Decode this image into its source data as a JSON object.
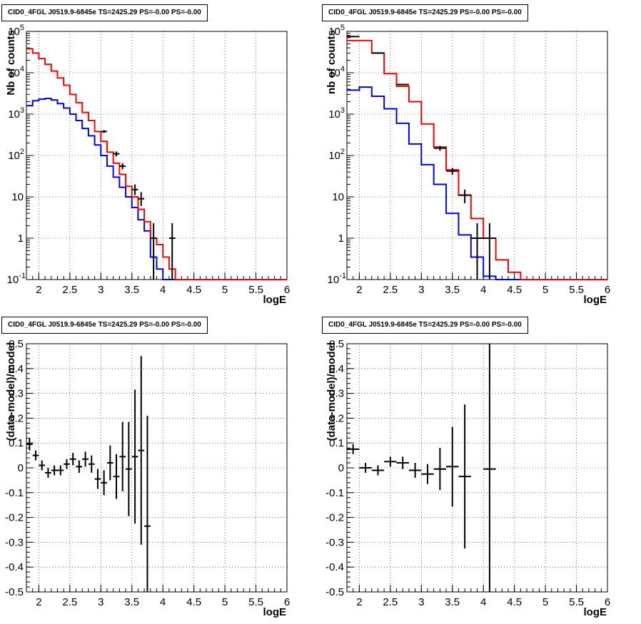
{
  "chart_data": [
    {
      "type": "histogram",
      "title": "CID0_4FGL J0519.9-6845e TS=2425.29 PS=-0.00 PS=-0.00",
      "xlabel": "logE",
      "ylabel": "Nb of counts",
      "log_y": true,
      "xlim": [
        1.8,
        6.0
      ],
      "ylim": [
        0.1,
        100000
      ],
      "grid": true,
      "x_ticks": [
        "2",
        "2.5",
        "3",
        "3.5",
        "4",
        "4.5",
        "5",
        "5.5",
        "6"
      ],
      "y_ticks": [
        "10^-1",
        "1",
        "10",
        "10^2",
        "10^3",
        "10^4",
        "10^5"
      ],
      "bin_edges": [
        1.8,
        1.9,
        2.0,
        2.1,
        2.2,
        2.3,
        2.4,
        2.5,
        2.6,
        2.7,
        2.8,
        2.9,
        3.0,
        3.1,
        3.2,
        3.3,
        3.4,
        3.5,
        3.6,
        3.7,
        3.8,
        3.9,
        4.0,
        4.1,
        4.2,
        4.3,
        4.4,
        4.5,
        4.6,
        4.7,
        4.8,
        4.9,
        5.0,
        5.1,
        5.2,
        5.3,
        5.4,
        5.5,
        5.6,
        5.7,
        5.8,
        5.9,
        6.0
      ],
      "series": [
        {
          "color": "#0000ff",
          "values": [
            1600,
            2100,
            2300,
            2400,
            2200,
            1800,
            1400,
            1000,
            700,
            450,
            300,
            180,
            100,
            55,
            30,
            17,
            10,
            5.5,
            2.8,
            1.5,
            0.35,
            0.18,
            0.1,
            0.1,
            0.1,
            0.1,
            0.1,
            0.1,
            0.1,
            0.1,
            0.1,
            0.1,
            0.1,
            0.1,
            0.1,
            0.1,
            0.1,
            0.1,
            0.1,
            0.1,
            0.1,
            0.1
          ]
        },
        {
          "color": "#ff0000",
          "values": [
            38000,
            30000,
            22000,
            16000,
            11000,
            7500,
            5000,
            3000,
            1900,
            1100,
            700,
            380,
            220,
            120,
            65,
            35,
            18,
            10,
            5,
            2.5,
            1.0,
            0.7,
            0.35,
            0.18,
            0.1,
            0.1,
            0.1,
            0.1,
            0.1,
            0.1,
            0.1,
            0.1,
            0.1,
            0.1,
            0.1,
            0.1,
            0.1,
            0.1,
            0.1,
            0.1,
            0.1,
            0.1
          ]
        }
      ],
      "data_points": [
        {
          "x": 3.05,
          "y": 380,
          "ylo": 350,
          "yhi": 410
        },
        {
          "x": 3.25,
          "y": 110,
          "ylo": 95,
          "yhi": 125
        },
        {
          "x": 3.35,
          "y": 55,
          "ylo": 46,
          "yhi": 65
        },
        {
          "x": 3.55,
          "y": 15,
          "ylo": 11,
          "yhi": 20
        },
        {
          "x": 3.65,
          "y": 9,
          "ylo": 6,
          "yhi": 13
        },
        {
          "x": 3.85,
          "y": 1,
          "ylo": 0.1,
          "yhi": 2.3
        },
        {
          "x": 4.15,
          "y": 1,
          "ylo": 0.1,
          "yhi": 2.3
        }
      ]
    },
    {
      "type": "histogram",
      "title": "CID0_4FGL J0519.9-6845e TS=2425.29 PS=-0.00 PS=-0.00",
      "xlabel": "logE",
      "ylabel": "nb of counts",
      "log_y": true,
      "xlim": [
        1.8,
        6.0
      ],
      "ylim": [
        0.1,
        100000
      ],
      "grid": true,
      "x_ticks": [
        "2",
        "2.5",
        "3",
        "3.5",
        "4",
        "4.5",
        "5",
        "5.5",
        "6"
      ],
      "y_ticks": [
        "10^-1",
        "1",
        "10",
        "10^2",
        "10^3",
        "10^4",
        "10^5"
      ],
      "bin_edges": [
        1.8,
        2.0,
        2.2,
        2.4,
        2.6,
        2.8,
        3.0,
        3.2,
        3.4,
        3.6,
        3.8,
        4.0,
        4.2,
        4.4,
        4.6,
        4.8,
        5.0,
        5.2,
        5.4,
        5.6,
        5.8,
        6.0
      ],
      "series": [
        {
          "color": "#0000ff",
          "values": [
            3800,
            4500,
            2700,
            1350,
            600,
            190,
            60,
            20,
            4,
            1.2,
            0.35,
            0.12,
            0.1,
            0.1,
            0.1,
            0.1,
            0.1,
            0.1,
            0.1,
            0.1,
            0.1
          ]
        },
        {
          "color": "#ff0000",
          "values": [
            60000,
            60000,
            30000,
            9500,
            4700,
            2000,
            580,
            160,
            45,
            11,
            3,
            1.0,
            0.3,
            0.15,
            0.1,
            0.1,
            0.1,
            0.1,
            0.1,
            0.1,
            0.1
          ]
        }
      ],
      "data_points": [
        {
          "x": 1.9,
          "y": 75000,
          "ylo": 73000,
          "yhi": 77000
        },
        {
          "x": 2.3,
          "y": 30000,
          "ylo": 29000,
          "yhi": 31000
        },
        {
          "x": 2.7,
          "y": 5200,
          "ylo": 5000,
          "yhi": 5400
        },
        {
          "x": 3.3,
          "y": 150,
          "ylo": 130,
          "yhi": 170
        },
        {
          "x": 3.5,
          "y": 42,
          "ylo": 34,
          "yhi": 50
        },
        {
          "x": 3.7,
          "y": 11,
          "ylo": 7,
          "yhi": 15
        },
        {
          "x": 3.9,
          "y": 1,
          "ylo": 0.1,
          "yhi": 2.3
        },
        {
          "x": 4.1,
          "y": 1,
          "ylo": 0.1,
          "yhi": 2.3
        }
      ]
    },
    {
      "type": "scatter",
      "title": "CID0_4FGL J0519.9-6845e TS=2425.29 PS=-0.00 PS=-0.00",
      "xlabel": "logE",
      "ylabel": "(data-model)/model",
      "log_y": false,
      "xlim": [
        1.8,
        6.0
      ],
      "ylim": [
        -0.5,
        0.5
      ],
      "grid": true,
      "x_ticks": [
        "2",
        "2.5",
        "3",
        "3.5",
        "4",
        "4.5",
        "5",
        "5.5",
        "6"
      ],
      "y_ticks": [
        "-0.5",
        "-0.4",
        "-0.3",
        "-0.2",
        "-0.1",
        "0",
        "0.1",
        "0.2",
        "0.3",
        "0.4",
        "0.5"
      ],
      "bin_width": 0.1,
      "points": [
        {
          "x": 1.85,
          "y": 0.095,
          "err": 0.025
        },
        {
          "x": 1.95,
          "y": 0.05,
          "err": 0.02
        },
        {
          "x": 2.05,
          "y": 0.01,
          "err": 0.02
        },
        {
          "x": 2.15,
          "y": -0.02,
          "err": 0.02
        },
        {
          "x": 2.25,
          "y": -0.01,
          "err": 0.02
        },
        {
          "x": 2.35,
          "y": -0.01,
          "err": 0.02
        },
        {
          "x": 2.45,
          "y": 0.015,
          "err": 0.02
        },
        {
          "x": 2.55,
          "y": 0.035,
          "err": 0.025
        },
        {
          "x": 2.65,
          "y": 0.005,
          "err": 0.025
        },
        {
          "x": 2.75,
          "y": 0.035,
          "err": 0.03
        },
        {
          "x": 2.85,
          "y": 0.015,
          "err": 0.035
        },
        {
          "x": 2.95,
          "y": -0.045,
          "err": 0.04
        },
        {
          "x": 3.05,
          "y": -0.06,
          "err": 0.05
        },
        {
          "x": 3.15,
          "y": 0.02,
          "err": 0.07
        },
        {
          "x": 3.25,
          "y": -0.035,
          "err": 0.09
        },
        {
          "x": 3.35,
          "y": 0.045,
          "err": 0.14
        },
        {
          "x": 3.45,
          "y": -0.005,
          "err": 0.19
        },
        {
          "x": 3.55,
          "y": 0.045,
          "err": 0.27
        },
        {
          "x": 3.65,
          "y": 0.07,
          "err": 0.38
        },
        {
          "x": 3.75,
          "y": -0.235,
          "err": 0.445
        }
      ]
    },
    {
      "type": "scatter",
      "title": "CID0_4FGL J0519.9-6845e TS=2425.29 PS=-0.00 PS=-0.00",
      "xlabel": "logE",
      "ylabel": "(data-model)/model",
      "log_y": false,
      "xlim": [
        1.8,
        6.0
      ],
      "ylim": [
        -0.5,
        0.5
      ],
      "grid": true,
      "x_ticks": [
        "2",
        "2.5",
        "3",
        "3.5",
        "4",
        "4.5",
        "5",
        "5.5",
        "6"
      ],
      "y_ticks": [
        "-0.5",
        "-0.4",
        "-0.3",
        "-0.2",
        "-0.1",
        "0",
        "0.1",
        "0.2",
        "0.3",
        "0.4",
        "0.5"
      ],
      "bin_width": 0.2,
      "points": [
        {
          "x": 1.9,
          "y": 0.075,
          "err": 0.02
        },
        {
          "x": 2.1,
          "y": 0.0,
          "err": 0.02
        },
        {
          "x": 2.3,
          "y": -0.01,
          "err": 0.02
        },
        {
          "x": 2.5,
          "y": 0.025,
          "err": 0.02
        },
        {
          "x": 2.7,
          "y": 0.02,
          "err": 0.025
        },
        {
          "x": 2.9,
          "y": -0.01,
          "err": 0.03
        },
        {
          "x": 3.1,
          "y": -0.025,
          "err": 0.04
        },
        {
          "x": 3.3,
          "y": -0.005,
          "err": 0.085
        },
        {
          "x": 3.5,
          "y": 0.005,
          "err": 0.16
        },
        {
          "x": 3.7,
          "y": -0.035,
          "err": 0.29
        },
        {
          "x": 4.1,
          "y": -0.005,
          "err": 0.7
        }
      ]
    }
  ]
}
